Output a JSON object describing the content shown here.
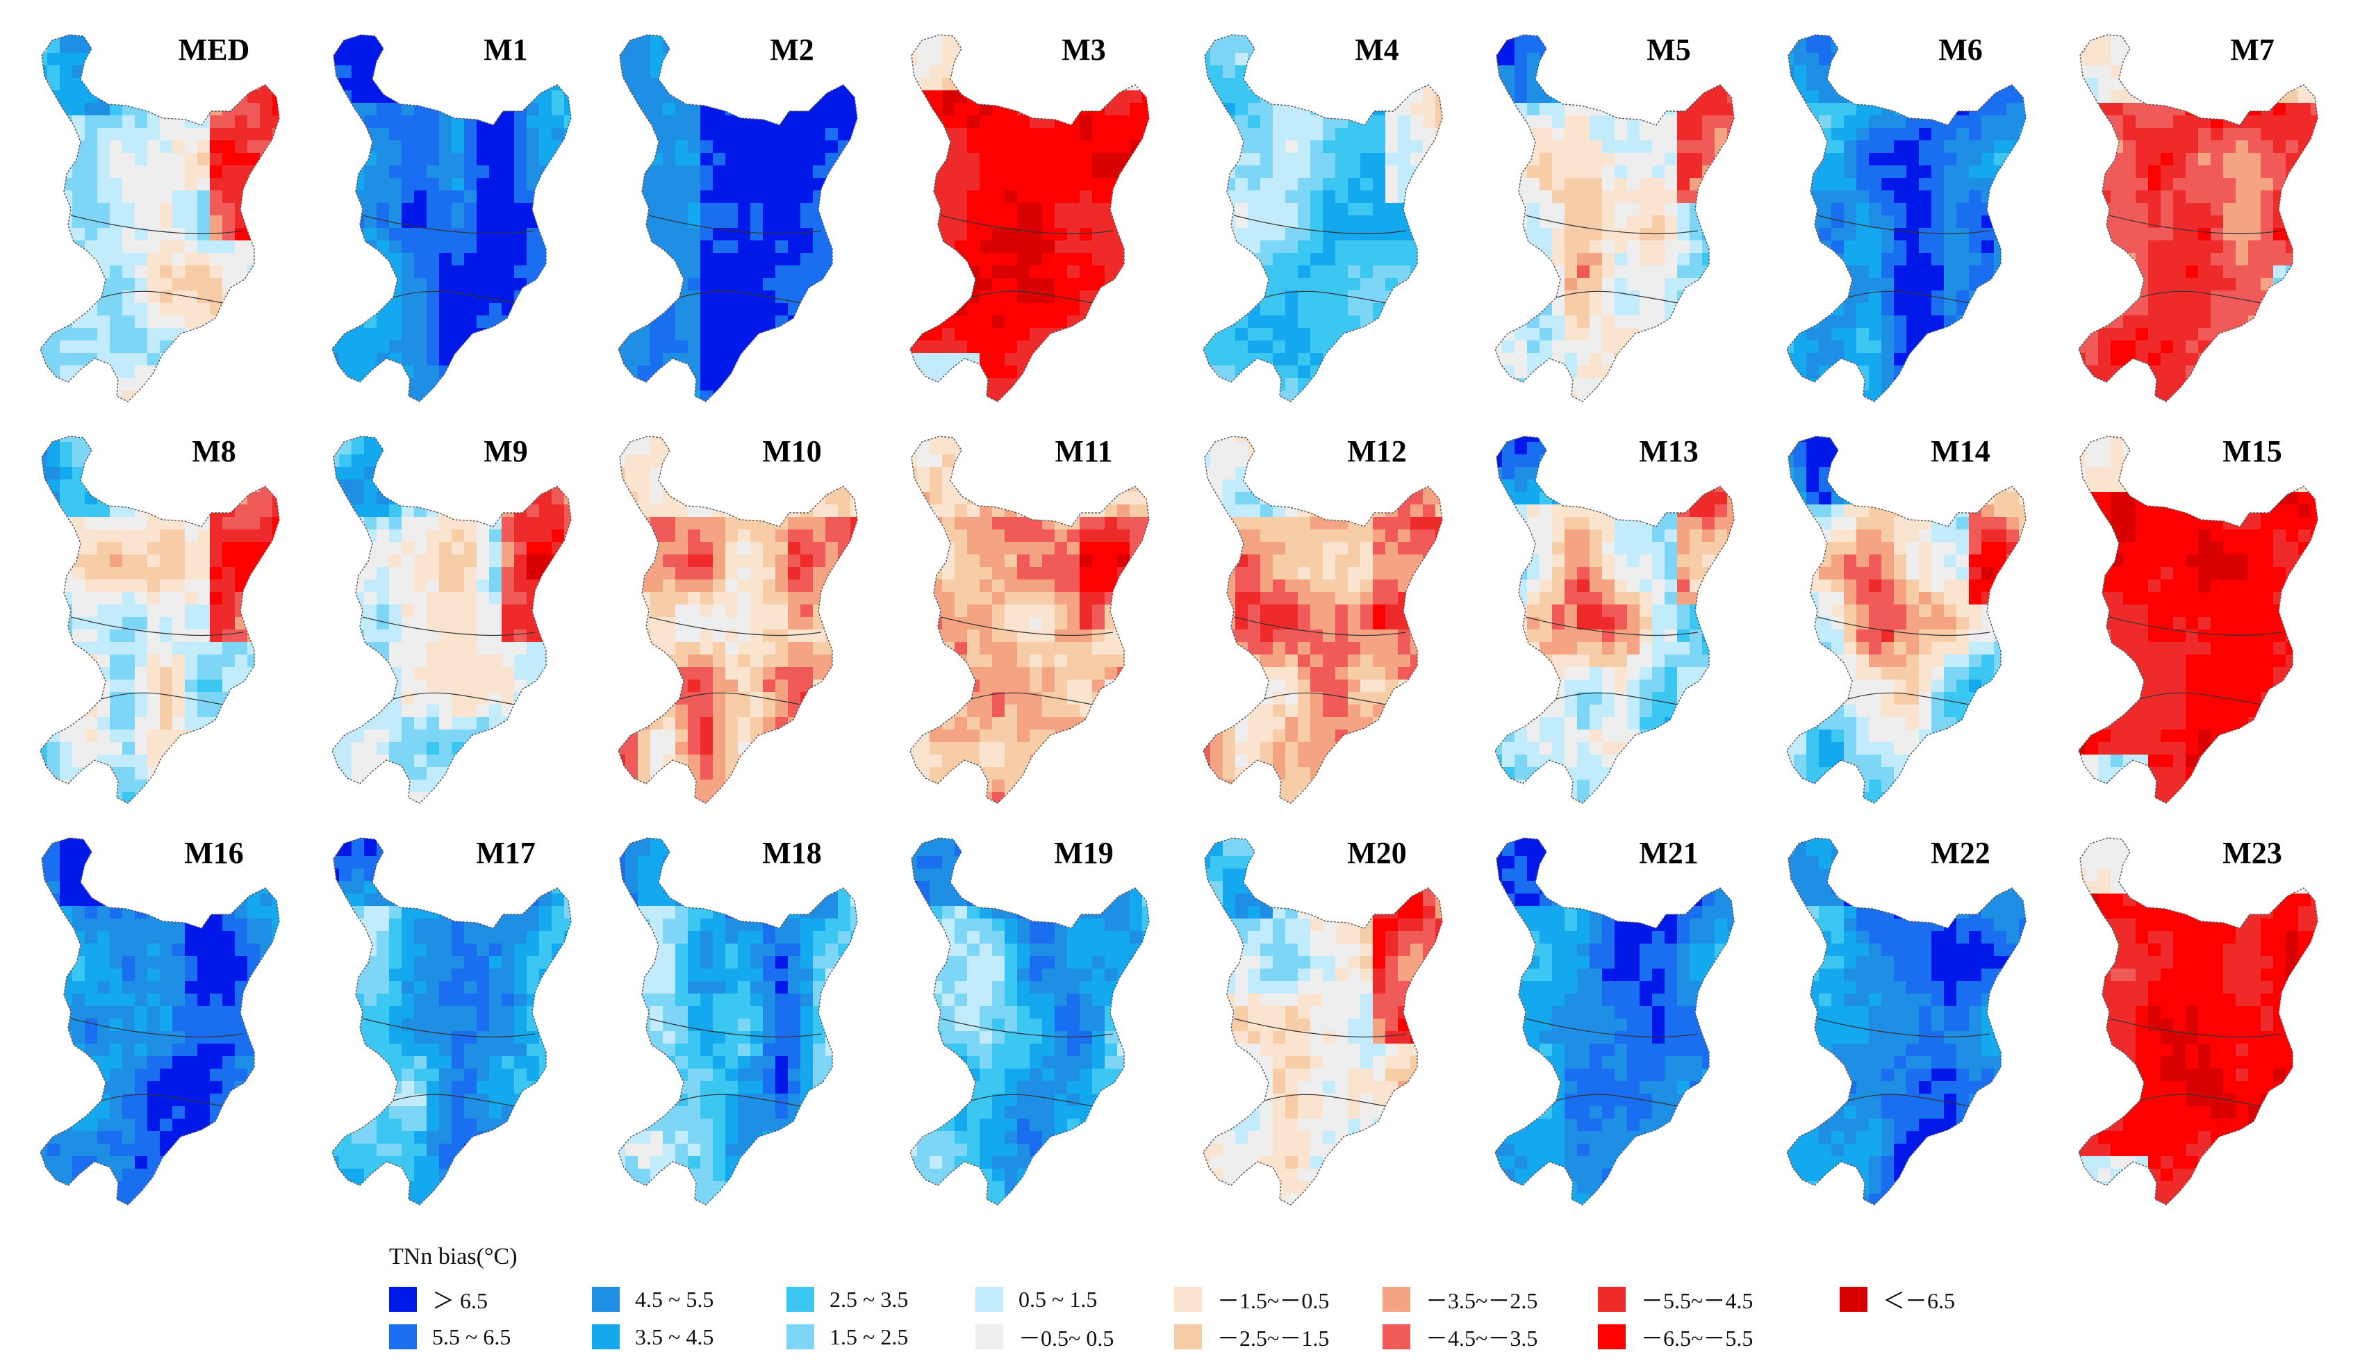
{
  "legend": {
    "title": "TNn bias(°C)",
    "items": [
      {
        "label": "＞ 6.5",
        "color": "#0018e8"
      },
      {
        "label": "5.5 ~ 6.5",
        "color": "#1a6ef0"
      },
      {
        "label": "4.5 ~ 5.5",
        "color": "#1f8fe6"
      },
      {
        "label": "3.5 ~ 4.5",
        "color": "#14a8ee"
      },
      {
        "label": "2.5 ~ 3.5",
        "color": "#3cc6f2"
      },
      {
        "label": "1.5 ~ 2.5",
        "color": "#7dd6f6"
      },
      {
        "label": "0.5 ~ 1.5",
        "color": "#c2ecfb"
      },
      {
        "label": "－0.5~ 0.5",
        "color": "#eeeeee"
      },
      {
        "label": "－1.5~－0.5",
        "color": "#fbe4cf"
      },
      {
        "label": "－2.5~－1.5",
        "color": "#f7cda8"
      },
      {
        "label": "－3.5~－2.5",
        "color": "#f4a383"
      },
      {
        "label": "－4.5~－3.5",
        "color": "#f05a58"
      },
      {
        "label": "－5.5~－4.5",
        "color": "#ef2a2a"
      },
      {
        "label": "－6.5~－5.5",
        "color": "#ff0000"
      },
      {
        "label": "＜－6.5",
        "color": "#d80000"
      }
    ]
  },
  "maps": [
    {
      "title": "MED",
      "pattern": "mixed-east-red"
    },
    {
      "title": "M1",
      "pattern": "blue-strong"
    },
    {
      "title": "M2",
      "pattern": "blue-very-strong"
    },
    {
      "title": "M3",
      "pattern": "red-very-strong"
    },
    {
      "title": "M4",
      "pattern": "blue-light"
    },
    {
      "title": "M5",
      "pattern": "mixed-center-red"
    },
    {
      "title": "M6",
      "pattern": "blue-strong"
    },
    {
      "title": "M7",
      "pattern": "red-strong"
    },
    {
      "title": "M8",
      "pattern": "mixed-east-red"
    },
    {
      "title": "M9",
      "pattern": "mixed-east-red"
    },
    {
      "title": "M10",
      "pattern": "red-moderate"
    },
    {
      "title": "M11",
      "pattern": "red-moderate"
    },
    {
      "title": "M12",
      "pattern": "red-moderate"
    },
    {
      "title": "M13",
      "pattern": "mixed-center-red"
    },
    {
      "title": "M14",
      "pattern": "mixed-center-red"
    },
    {
      "title": "M15",
      "pattern": "red-very-strong"
    },
    {
      "title": "M16",
      "pattern": "blue-strong"
    },
    {
      "title": "M17",
      "pattern": "blue-moderate"
    },
    {
      "title": "M18",
      "pattern": "blue-moderate"
    },
    {
      "title": "M19",
      "pattern": "blue-moderate"
    },
    {
      "title": "M20",
      "pattern": "mixed-east-red"
    },
    {
      "title": "M21",
      "pattern": "blue-strong"
    },
    {
      "title": "M22",
      "pattern": "blue-strong"
    },
    {
      "title": "M23",
      "pattern": "red-very-strong"
    }
  ]
}
